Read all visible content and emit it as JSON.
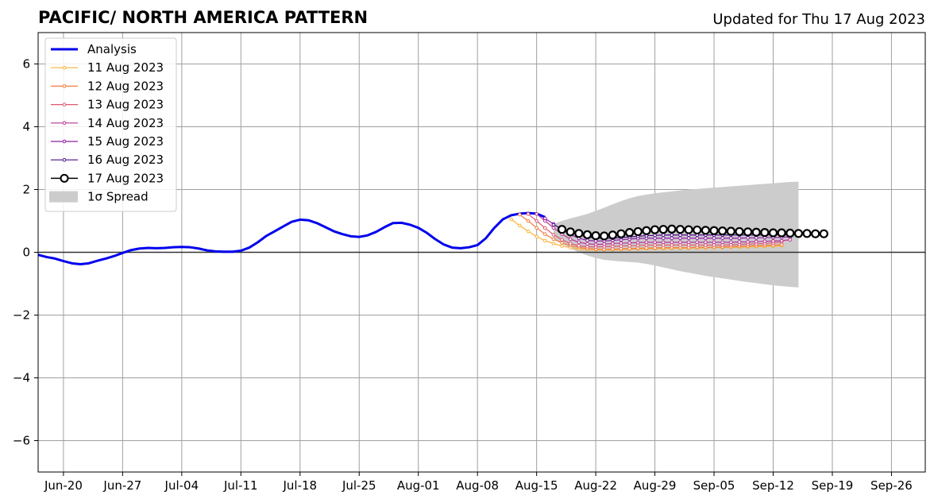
{
  "chart_data": {
    "type": "line",
    "title": "PACIFIC/ NORTH AMERICA PATTERN",
    "subtitle": "Updated for Thu 17 Aug 2023",
    "xlabel": "",
    "ylabel": "",
    "xlim": [
      "2023-06-17",
      "2023-09-30"
    ],
    "ylim": [
      -7,
      7
    ],
    "grid": true,
    "legend_position": "top-left",
    "x_ticks": [
      {
        "date": "2023-06-20",
        "label": "Jun-20"
      },
      {
        "date": "2023-06-27",
        "label": "Jun-27"
      },
      {
        "date": "2023-07-04",
        "label": "Jul-04"
      },
      {
        "date": "2023-07-11",
        "label": "Jul-11"
      },
      {
        "date": "2023-07-18",
        "label": "Jul-18"
      },
      {
        "date": "2023-07-25",
        "label": "Jul-25"
      },
      {
        "date": "2023-08-01",
        "label": "Aug-01"
      },
      {
        "date": "2023-08-08",
        "label": "Aug-08"
      },
      {
        "date": "2023-08-15",
        "label": "Aug-15"
      },
      {
        "date": "2023-08-22",
        "label": "Aug-22"
      },
      {
        "date": "2023-08-29",
        "label": "Aug-29"
      },
      {
        "date": "2023-09-05",
        "label": "Sep-05"
      },
      {
        "date": "2023-09-12",
        "label": "Sep-12"
      },
      {
        "date": "2023-09-19",
        "label": "Sep-19"
      },
      {
        "date": "2023-09-26",
        "label": "Sep-26"
      }
    ],
    "y_ticks": [
      {
        "value": 6,
        "label": "6"
      },
      {
        "value": 4,
        "label": "4"
      },
      {
        "value": 2,
        "label": "2"
      },
      {
        "value": 0,
        "label": "0"
      },
      {
        "value": -2,
        "label": "−2"
      },
      {
        "value": -4,
        "label": "−4"
      },
      {
        "value": -6,
        "label": "−6"
      }
    ],
    "analysis": {
      "name": "Analysis",
      "color": "#0000ee",
      "start": "2023-06-17",
      "values": [
        -0.08,
        -0.15,
        -0.2,
        -0.28,
        -0.35,
        -0.38,
        -0.35,
        -0.27,
        -0.2,
        -0.12,
        -0.02,
        0.07,
        0.12,
        0.14,
        0.13,
        0.14,
        0.16,
        0.17,
        0.16,
        0.12,
        0.06,
        0.03,
        0.02,
        0.02,
        0.05,
        0.15,
        0.32,
        0.52,
        0.67,
        0.82,
        0.97,
        1.04,
        1.02,
        0.93,
        0.8,
        0.67,
        0.58,
        0.51,
        0.49,
        0.54,
        0.65,
        0.8,
        0.93,
        0.94,
        0.88,
        0.78,
        0.62,
        0.42,
        0.25,
        0.15,
        0.13,
        0.16,
        0.23,
        0.45,
        0.78,
        1.05,
        1.18,
        1.23,
        1.25,
        1.23,
        1.12
      ]
    },
    "spread": {
      "name": "1σ Spread",
      "color": "#cccccc",
      "start": "2023-08-17",
      "upper": [
        0.9,
        1.0,
        1.08,
        1.15,
        1.22,
        1.32,
        1.42,
        1.53,
        1.63,
        1.72,
        1.79,
        1.84,
        1.88,
        1.91,
        1.94,
        1.97,
        2.0,
        2.02,
        2.04,
        2.06,
        2.08,
        2.1,
        2.12,
        2.14,
        2.16,
        2.18,
        2.2,
        2.22,
        2.24,
        2.25
      ],
      "lower": [
        0.45,
        0.28,
        0.12,
        0.0,
        -0.1,
        -0.18,
        -0.24,
        -0.27,
        -0.29,
        -0.31,
        -0.33,
        -0.37,
        -0.42,
        -0.48,
        -0.54,
        -0.6,
        -0.65,
        -0.7,
        -0.75,
        -0.79,
        -0.83,
        -0.87,
        -0.91,
        -0.95,
        -0.98,
        -1.02,
        -1.05,
        -1.08,
        -1.1,
        -1.12
      ]
    },
    "forecasts": [
      {
        "name": "11 Aug 2023",
        "color": "#f9b233",
        "start": "2023-08-12",
        "values": [
          1.05,
          0.85,
          0.67,
          0.5,
          0.37,
          0.28,
          0.2,
          0.15,
          0.11,
          0.09,
          0.08,
          0.08,
          0.08,
          0.09,
          0.1,
          0.11,
          0.11,
          0.12,
          0.12,
          0.13,
          0.13,
          0.13,
          0.14,
          0.14,
          0.15,
          0.15,
          0.16,
          0.16,
          0.17,
          0.18,
          0.19,
          0.2,
          0.21
        ]
      },
      {
        "name": "12 Aug 2023",
        "color": "#f47b3d",
        "start": "2023-08-13",
        "values": [
          1.2,
          1.0,
          0.78,
          0.58,
          0.42,
          0.3,
          0.22,
          0.16,
          0.12,
          0.1,
          0.09,
          0.1,
          0.11,
          0.12,
          0.13,
          0.14,
          0.14,
          0.15,
          0.15,
          0.15,
          0.15,
          0.16,
          0.16,
          0.16,
          0.17,
          0.18,
          0.19,
          0.2,
          0.21,
          0.22,
          0.23,
          0.24
        ]
      },
      {
        "name": "13 Aug 2023",
        "color": "#e0586e",
        "start": "2023-08-14",
        "values": [
          1.22,
          1.0,
          0.77,
          0.56,
          0.4,
          0.28,
          0.21,
          0.18,
          0.17,
          0.18,
          0.19,
          0.2,
          0.21,
          0.22,
          0.23,
          0.23,
          0.23,
          0.23,
          0.23,
          0.23,
          0.23,
          0.23,
          0.23,
          0.23,
          0.24,
          0.25,
          0.26,
          0.27,
          0.28,
          0.3,
          0.33
        ]
      },
      {
        "name": "14 Aug 2023",
        "color": "#b83494",
        "start": "2023-08-15",
        "values": [
          1.22,
          1.0,
          0.78,
          0.58,
          0.42,
          0.32,
          0.27,
          0.25,
          0.26,
          0.28,
          0.29,
          0.3,
          0.31,
          0.32,
          0.32,
          0.32,
          0.32,
          0.32,
          0.32,
          0.32,
          0.32,
          0.32,
          0.32,
          0.32,
          0.33,
          0.33,
          0.34,
          0.35,
          0.36,
          0.37,
          0.4
        ]
      },
      {
        "name": "15 Aug 2023",
        "color": "#8c1fa3",
        "start": "2023-08-16",
        "values": [
          1.08,
          0.9,
          0.72,
          0.56,
          0.45,
          0.38,
          0.36,
          0.36,
          0.38,
          0.4,
          0.42,
          0.44,
          0.45,
          0.45,
          0.45,
          0.45,
          0.45,
          0.45,
          0.45,
          0.45,
          0.45,
          0.45,
          0.45,
          0.45,
          0.46,
          0.46,
          0.47,
          0.47,
          0.48,
          0.49
        ]
      },
      {
        "name": "16 Aug 2023",
        "color": "#4b0c8a",
        "start": "2023-08-17",
        "values": [
          0.88,
          0.75,
          0.64,
          0.56,
          0.49,
          0.45,
          0.44,
          0.45,
          0.47,
          0.49,
          0.51,
          0.53,
          0.54,
          0.55,
          0.55,
          0.55,
          0.55,
          0.55,
          0.55,
          0.55,
          0.55,
          0.55,
          0.55,
          0.55,
          0.55,
          0.55,
          0.56,
          0.56,
          0.56,
          0.57
        ]
      },
      {
        "name": "17 Aug 2023",
        "color": "#000000",
        "start": "2023-08-18",
        "values": [
          0.73,
          0.65,
          0.6,
          0.56,
          0.53,
          0.52,
          0.55,
          0.59,
          0.63,
          0.66,
          0.69,
          0.72,
          0.73,
          0.74,
          0.73,
          0.72,
          0.71,
          0.7,
          0.69,
          0.68,
          0.67,
          0.66,
          0.65,
          0.64,
          0.63,
          0.62,
          0.62,
          0.61,
          0.6,
          0.6,
          0.59,
          0.59
        ]
      }
    ],
    "legend": [
      "Analysis",
      "11 Aug 2023",
      "12 Aug 2023",
      "13 Aug 2023",
      "14 Aug 2023",
      "15 Aug 2023",
      "16 Aug 2023",
      "17 Aug 2023",
      "1σ Spread"
    ]
  }
}
